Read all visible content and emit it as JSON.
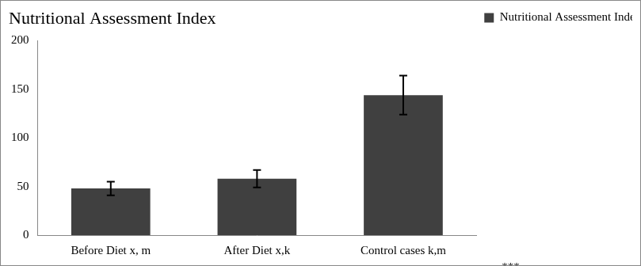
{
  "chart_data": {
    "type": "bar",
    "title": "Nutritional Assessment Index",
    "categories": [
      "Before Diet x, m",
      "After Diet x,k",
      "Control cases k,m"
    ],
    "series": [
      {
        "name": "Nutritional Assessment Index",
        "color": "#404040",
        "values": [
          48,
          58,
          144
        ],
        "errors": [
          7,
          9,
          20
        ]
      }
    ],
    "annotation": "***",
    "ylim": [
      0,
      200
    ],
    "yticks": [
      0,
      50,
      100,
      150,
      200
    ],
    "grid": false,
    "legend": "right"
  }
}
